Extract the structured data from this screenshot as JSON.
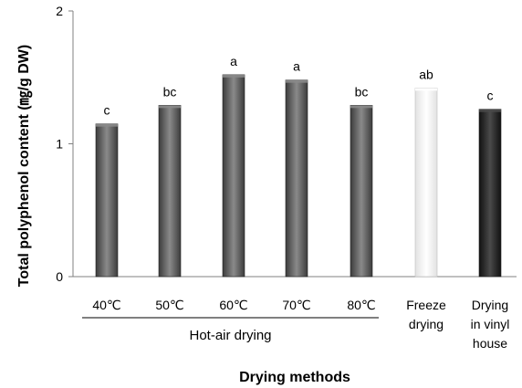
{
  "chart_data": {
    "type": "bar",
    "categories": [
      [
        "40℃"
      ],
      [
        "50℃"
      ],
      [
        "60℃"
      ],
      [
        "70℃"
      ],
      [
        "80℃"
      ],
      [
        "Freeze",
        "drying"
      ],
      [
        "Drying",
        "in vinyl",
        "house"
      ]
    ],
    "values": [
      1.15,
      1.29,
      1.52,
      1.48,
      1.29,
      1.42,
      1.26
    ],
    "significance_labels": [
      "c",
      "bc",
      "a",
      "a",
      "bc",
      "ab",
      "c"
    ],
    "bar_styles": [
      "dark",
      "dark",
      "dark",
      "dark",
      "dark",
      "light",
      "black"
    ],
    "colors": {
      "dark": "#3c3c3c",
      "dark_highlight": "#8a8a8a",
      "light": "#e2e2e2",
      "light_highlight": "#ffffff",
      "black": "#111111",
      "black_highlight": "#4a4a4a"
    },
    "group_label": "Hot-air drying",
    "group_members": [
      0,
      1,
      2,
      3,
      4
    ],
    "ylabel": "Total polyphenol content (㎎/g DW)",
    "xlabel": "Drying methods",
    "ylim": [
      0,
      2
    ],
    "yticks": [
      0,
      1,
      2
    ],
    "grid": false
  }
}
